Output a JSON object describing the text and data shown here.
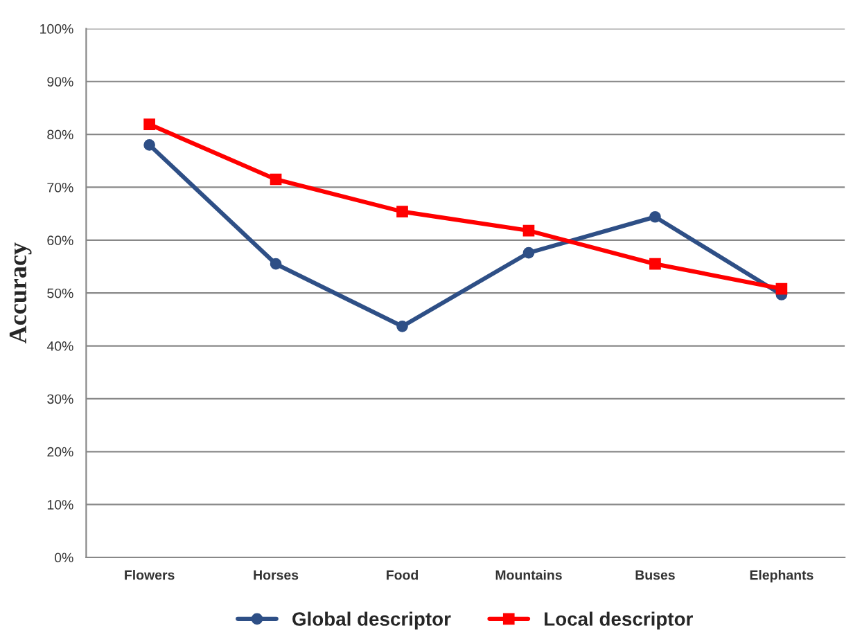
{
  "chart_data": {
    "type": "line",
    "ylabel": "Accuracy",
    "categories": [
      "Flowers",
      "Horses",
      "Food",
      "Mountains",
      "Buses",
      "Elephants"
    ],
    "series": [
      {
        "name": "Global descriptor",
        "color": "#2e4f86",
        "marker": "circle",
        "values": [
          78,
          55.5,
          43.7,
          57.6,
          64.4,
          49.7
        ]
      },
      {
        "name": "Local descriptor",
        "color": "#ff0000",
        "marker": "square",
        "values": [
          81.9,
          71.5,
          65.4,
          61.8,
          55.5,
          50.8
        ]
      }
    ],
    "ylim": [
      0,
      100
    ],
    "yticks": [
      {
        "value": 0,
        "label": "0%"
      },
      {
        "value": 10,
        "label": "10%"
      },
      {
        "value": 20,
        "label": "20%"
      },
      {
        "value": 30,
        "label": "30%"
      },
      {
        "value": 40,
        "label": "40%"
      },
      {
        "value": 50,
        "label": "50%"
      },
      {
        "value": 60,
        "label": "60%"
      },
      {
        "value": 70,
        "label": "70%"
      },
      {
        "value": 80,
        "label": "80%"
      },
      {
        "value": 90,
        "label": "90%"
      },
      {
        "value": 100,
        "label": "100%"
      }
    ],
    "grid": "y",
    "legend": "bottom",
    "line_style": "solid"
  }
}
